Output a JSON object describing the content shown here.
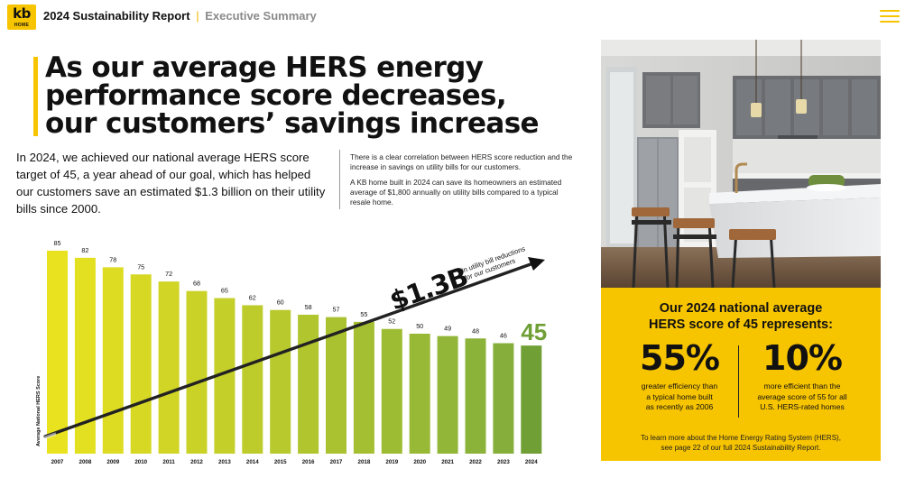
{
  "brand": {
    "logo_top": "kb",
    "logo_bottom": "HOME"
  },
  "header": {
    "report_title": "2024 Sustainability Report",
    "separator": "|",
    "section": "Executive Summary"
  },
  "menu": {
    "icon": "hamburger-menu-icon"
  },
  "headline": {
    "line1": "As our average HERS energy",
    "line2": "performance score decreases,",
    "line3": "our customers’ savings increase"
  },
  "intro": "In 2024, we achieved our national average HERS score target of 45, a year ahead of our goal, which has helped our customers save an estimated $1.3 billion on their utility bills since 2000.",
  "side": {
    "p1": "There is a clear correlation between HERS score reduction and the increase in savings on utility bills for our customers.",
    "p2": "A KB home built in 2024 can save its homeowners an estimated average of $1,800 annually on utility bills compared to a typical resale home."
  },
  "chart_data": {
    "type": "bar",
    "categories": [
      "2007",
      "2008",
      "2009",
      "2010",
      "2011",
      "2012",
      "2013",
      "2014",
      "2015",
      "2016",
      "2017",
      "2018",
      "2019",
      "2020",
      "2021",
      "2022",
      "2023",
      "2024"
    ],
    "values": [
      85,
      82,
      78,
      75,
      72,
      68,
      65,
      62,
      60,
      58,
      57,
      55,
      52,
      50,
      49,
      48,
      46,
      45
    ],
    "highlight_last_label": "45",
    "ylabel": "Average National HERS Score",
    "trend_label": "$1.3B",
    "trend_sublabel_1": "in utility bill reductions",
    "trend_sublabel_2": "for our customers",
    "colors": {
      "start": "#e9e21f",
      "end": "#7fac3c",
      "highlight": "#6f9f35",
      "arrow": "#111111"
    }
  },
  "summary": {
    "title_line1": "Our 2024 national average",
    "title_line2": "HERS score of 45 represents:",
    "stat1": {
      "value": "55%",
      "desc_line1": "greater efficiency than",
      "desc_line2": "a typical home built",
      "desc_line3": "as recently as 2006"
    },
    "stat2": {
      "value": "10%",
      "desc_line1": "more efficient than the",
      "desc_line2": "average score of 55 for all",
      "desc_line3": "U.S. HERS-rated homes"
    },
    "footer_line1": "To learn more about the Home Energy Rating System (HERS),",
    "footer_line2": "see page 22 of our full 2024 Sustainability Report."
  },
  "colors": {
    "brand_yellow": "#f7c400",
    "section_gray": "#8a8a8a"
  }
}
